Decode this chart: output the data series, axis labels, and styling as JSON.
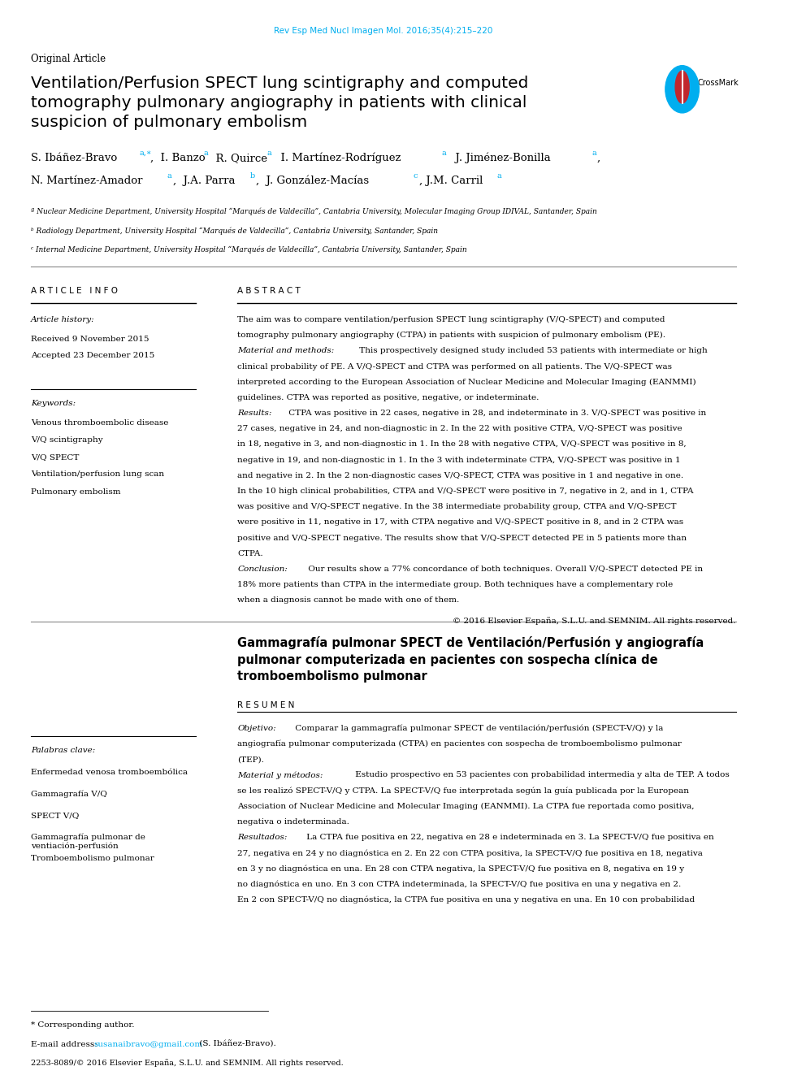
{
  "journal_header": "Rev Esp Med Nucl Imagen Mol. 2016;35(4):215–220",
  "journal_header_color": "#00AEEF",
  "article_type": "Original Article",
  "title": "Ventilation/Perfusion SPECT lung scintigraphy and computed\ntomography pulmonary angiography in patients with clinical\nsuspicion of pulmonary embolism",
  "affil_a": "ª Nuclear Medicine Department, University Hospital “Marqués de Valdecilla”, Cantabria University, Molecular Imaging Group IDIVAL, Santander, Spain",
  "affil_b": "ᵇ Radiology Department, University Hospital “Marqués de Valdecilla”, Cantabria University, Santander, Spain",
  "affil_c": "ᶜ Internal Medicine Department, University Hospital “Marqués de Valdecilla”, Cantabria University, Santander, Spain",
  "article_info_header": "A R T I C L E   I N F O",
  "abstract_header": "A B S T R A C T",
  "article_history_label": "Article history:",
  "received": "Received 9 November 2015",
  "accepted": "Accepted 23 December 2015",
  "keywords_label": "Keywords:",
  "keywords": [
    "Venous thromboembolic disease",
    "V/Q scintigraphy",
    "V/Q SPECT",
    "Ventilation/perfusion lung scan",
    "Pulmonary embolism"
  ],
  "copyright": "© 2016 Elsevier España, S.L.U. and SEMNIM. All rights reserved.",
  "spanish_title": "Gammagrafía pulmonar SPECT de Ventilación/Perfusión y angiografía\npulmonar computerizada en pacientes con sospecha clínica de\ntromboembolismo pulmonar",
  "resumen_header": "R E S U M E N",
  "palabras_clave_label": "Palabras clave:",
  "palabras_clave": [
    "Enfermedad venosa tromboembólica",
    "Gammagrafía V/Q",
    "SPECT V/Q",
    "Gammagrafía pulmonar de\nventiación-perfusión",
    "Tromboembolismo pulmonar"
  ],
  "footnote_star": "* Corresponding author.",
  "footnote_email_label": "E-mail address: ",
  "footnote_email": "susanaibravo@gmail.com",
  "footnote_email_suffix": " (S. Ibáñez-Bravo).",
  "footer": "2253-8089/© 2016 Elsevier España, S.L.U. and SEMNIM. All rights reserved.",
  "background_color": "#ffffff",
  "text_color": "#000000",
  "link_color": "#00AEEF"
}
